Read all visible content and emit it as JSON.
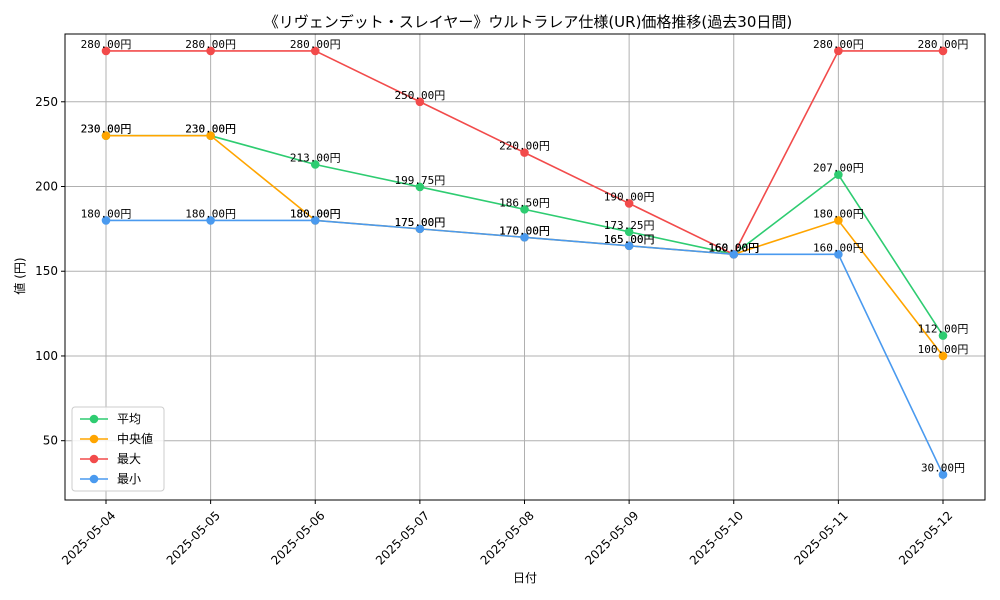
{
  "chart_data": {
    "type": "line",
    "title": "《リヴェンデット・スレイヤー》ウルトラレア仕様(UR)価格推移(過去30日間)",
    "xlabel": "日付",
    "ylabel": "値 (円)",
    "categories": [
      "2025-05-04",
      "2025-05-05",
      "2025-05-06",
      "2025-05-07",
      "2025-05-08",
      "2025-05-09",
      "2025-05-10",
      "2025-05-11",
      "2025-05-12"
    ],
    "ylim": [
      15,
      290
    ],
    "yticks": [
      50,
      100,
      150,
      200,
      250
    ],
    "grid": true,
    "legend_position": "lower-left",
    "series": [
      {
        "name": "平均",
        "color": "#2ecc71",
        "values": [
          230,
          230,
          213,
          199.75,
          186.5,
          173.25,
          160,
          207,
          112
        ],
        "labels": [
          "230.00円",
          "230.00円",
          "213.00円",
          "199.75円",
          "186.50円",
          "173.25円",
          "160.00円",
          "207.00円",
          "112.00円"
        ]
      },
      {
        "name": "中央値",
        "color": "#ffa500",
        "values": [
          230,
          230,
          180,
          175,
          170,
          165,
          160,
          180,
          100
        ],
        "labels": [
          "230.00円",
          "230.00円",
          "180.00円",
          "175.00円",
          "170.00円",
          "165.00円",
          "160.00円",
          "180.00円",
          "100.00円"
        ]
      },
      {
        "name": "最大",
        "color": "#f24b4b",
        "values": [
          280,
          280,
          280,
          250,
          220,
          190,
          160,
          280,
          280
        ],
        "labels": [
          "280.00円",
          "280.00円",
          "280.00円",
          "250.00円",
          "220.00円",
          "190.00円",
          "160.00円",
          "280.00円",
          "280.00円"
        ]
      },
      {
        "name": "最小",
        "color": "#4a9aef",
        "values": [
          180,
          180,
          180,
          175,
          170,
          165,
          160,
          160,
          30
        ],
        "labels": [
          "180.00円",
          "180.00円",
          "180.00円",
          "175.00円",
          "170.00円",
          "165.00円",
          "160.00円",
          "160.00円",
          "30.00円"
        ]
      }
    ]
  }
}
